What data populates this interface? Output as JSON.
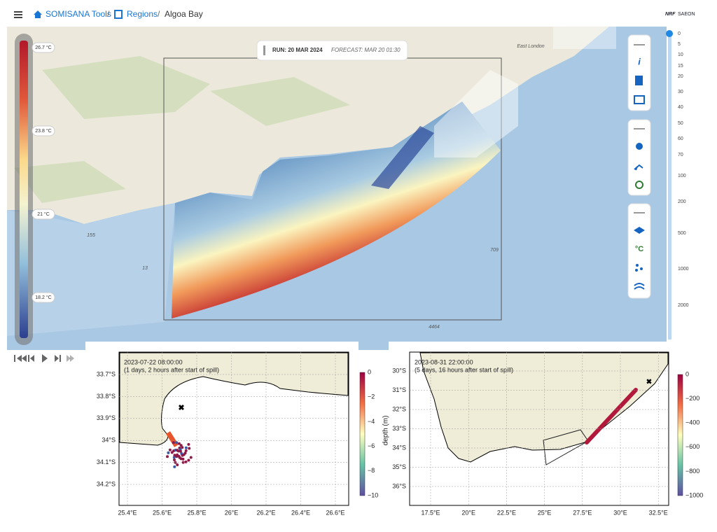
{
  "header": {
    "breadcrumbs": [
      "SOMISANA Tools",
      "Regions",
      "Algoa Bay"
    ],
    "logo": [
      "NRF",
      "SAEON"
    ]
  },
  "map": {
    "run": "RUN: 20 MAR 2024",
    "forecast": "FORECAST: MAR 20 01:30",
    "labels": [
      "East London",
      "155",
      "13",
      "709",
      "4464"
    ],
    "legend": [
      "26.7 °C",
      "23.8 °C",
      "21 °C",
      "18.2 °C"
    ]
  },
  "toolbar": {
    "units": "°C"
  },
  "depth_scale": [
    0,
    5,
    10,
    15,
    20,
    30,
    40,
    50,
    60,
    70,
    100,
    200,
    500,
    1000,
    2000
  ],
  "plots": [
    {
      "title": "2023-07-22 08:00:00",
      "subtitle": "(1 days, 2 hours after start of spill)",
      "yticks": [
        "33.7°S",
        "33.8°S",
        "33.9°S",
        "34°S",
        "34.1°S",
        "34.2°S"
      ],
      "xticks": [
        "25.4°E",
        "25.6°E",
        "25.8°E",
        "26°E",
        "26.2°E",
        "26.4°E",
        "26.6°E"
      ],
      "colorbar_ticks": [
        "0",
        "−2",
        "−4",
        "−6",
        "−8",
        "−10"
      ],
      "colorbar_label": "depth (m)"
    },
    {
      "title": "2023-08-31 22:00:00",
      "subtitle": "(5 days, 16 hours after start of spill)",
      "yticks": [
        "30°S",
        "31°S",
        "32°S",
        "33°S",
        "34°S",
        "35°S",
        "36°S"
      ],
      "xticks": [
        "17.5°E",
        "20°E",
        "22.5°E",
        "25°E",
        "27.5°E",
        "30°E",
        "32.5°E"
      ],
      "colorbar_ticks": [
        "0",
        "−200",
        "−400",
        "−600",
        "−800",
        "−1000"
      ]
    }
  ]
}
